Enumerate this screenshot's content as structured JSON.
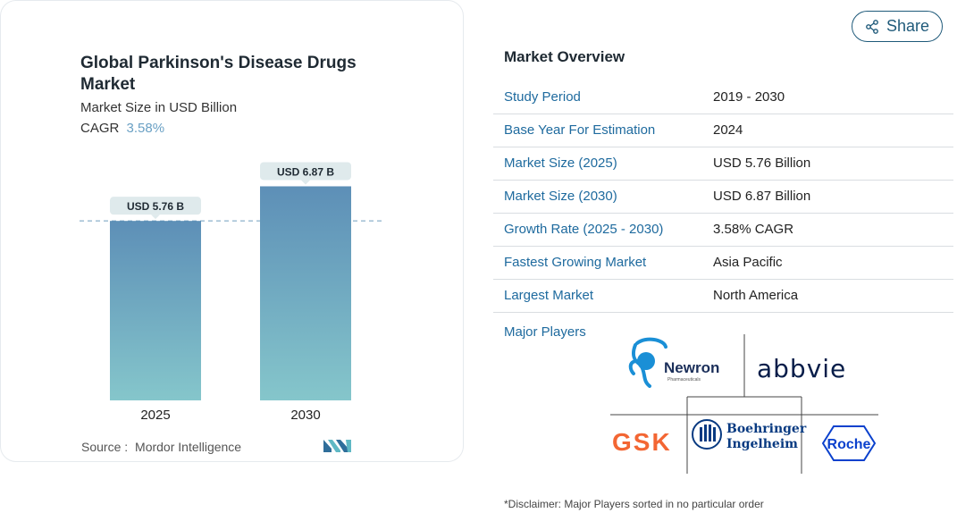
{
  "chart_data": {
    "type": "bar",
    "title": "Global Parkinson's Disease Drugs Market",
    "subtitle": "Market Size in USD Billion",
    "cagr_label": "CAGR",
    "cagr_value": "3.58%",
    "categories": [
      "2025",
      "2030"
    ],
    "values": [
      5.76,
      6.87
    ],
    "data_labels": [
      "USD 5.76 B",
      "USD 6.87 B"
    ],
    "ylim": [
      0,
      7.4
    ],
    "grid": false,
    "legend": "none",
    "reference_line_value": 5.76,
    "colors": {
      "bar_top": "#5d8fb7",
      "bar_bottom": "#85c6cb",
      "label_bg": "#dfeaec",
      "ref_line": "#6f9dbd"
    }
  },
  "source": {
    "label": "Source :",
    "value": "Mordor Intelligence"
  },
  "share": {
    "label": "Share"
  },
  "market_overview": {
    "title": "Market Overview",
    "rows": [
      {
        "key": "Study Period",
        "value": "2019 - 2030"
      },
      {
        "key": "Base Year For Estimation",
        "value": "2024"
      },
      {
        "key": "Market Size (2025)",
        "value": "USD 5.76 Billion"
      },
      {
        "key": "Market Size (2030)",
        "value": "USD 6.87 Billion"
      },
      {
        "key": "Growth Rate (2025 - 2030)",
        "value": "3.58% CAGR"
      },
      {
        "key": "Fastest Growing Market",
        "value": "Asia Pacific"
      },
      {
        "key": "Largest Market",
        "value": "North America"
      }
    ]
  },
  "major_players": {
    "label": "Major Players",
    "logos": {
      "newron": "Newron",
      "newron_sub": "Pharmaceuticals",
      "abbvie": "abbvie",
      "gsk": "GSK",
      "boehringer_line1": "Boehringer",
      "boehringer_line2": "Ingelheim",
      "roche": "Roche"
    }
  },
  "disclaimer": "*Disclaimer: Major Players sorted in no particular order"
}
